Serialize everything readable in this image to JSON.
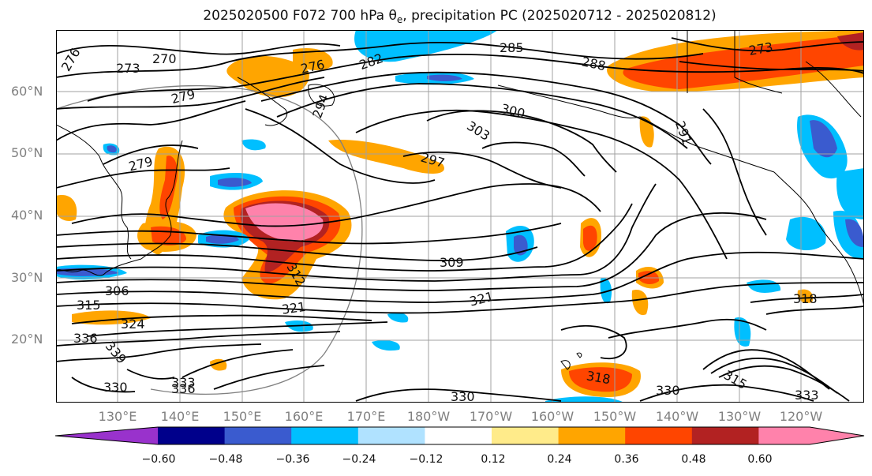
{
  "title": {
    "prefix": "2025020500 F072 700 hPa θ",
    "sub": "e",
    "suffix": ", precipitation PC (2025020712 - 2025020812)"
  },
  "lat_labels": [
    "60°N",
    "50°N",
    "40°N",
    "30°N",
    "20°N"
  ],
  "lon_labels": [
    "130°E",
    "140°E",
    "150°E",
    "160°E",
    "170°E",
    "180°W",
    "170°W",
    "160°W",
    "150°W",
    "140°W",
    "130°W",
    "120°W"
  ],
  "contour_labels": [
    "276",
    "273",
    "270",
    "276",
    "282",
    "285",
    "288",
    "273",
    "279",
    "294",
    "300",
    "303",
    "291",
    "279",
    "297",
    "309",
    "306",
    "312",
    "315",
    "324",
    "321",
    "321",
    "318",
    "336",
    "339",
    "330",
    "333",
    "336",
    "315",
    "330",
    "318",
    "330",
    "333"
  ],
  "colorbar": {
    "ticks": [
      "−0.60",
      "−0.48",
      "−0.36",
      "−0.24",
      "−0.12",
      "0.12",
      "0.24",
      "0.36",
      "0.48",
      "0.60"
    ],
    "colors": [
      "#9932cc",
      "#00008b",
      "#3a5bcf",
      "#00bfff",
      "#b0e2ff",
      "#ffffff",
      "#ffeb8a",
      "#ffa500",
      "#ff4500",
      "#b22222",
      "#ff82ab"
    ]
  },
  "colors": {
    "contour": "#000000",
    "coast": "#000000",
    "grid": "#a0a0a0",
    "tick_label": "#808080"
  }
}
